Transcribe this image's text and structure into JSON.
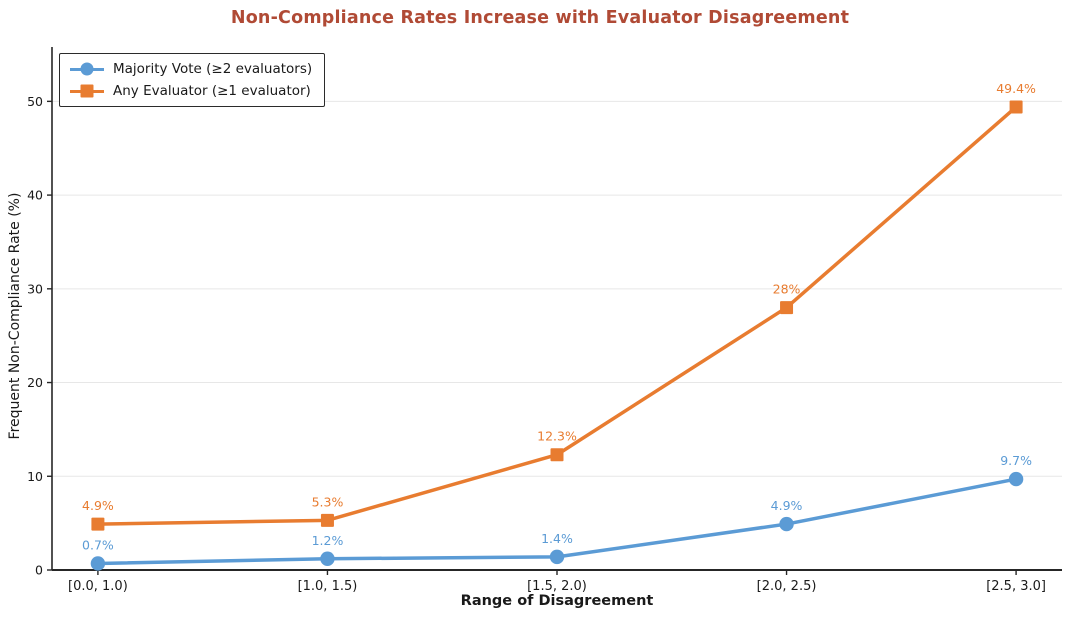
{
  "page": {
    "background": "#ffffff"
  },
  "chart_data": {
    "type": "line",
    "title": "Non-Compliance Rates Increase with Evaluator Disagreement",
    "title_color": "#B04A35",
    "xlabel": "Range of Disagreement",
    "ylabel": "Frequent Non-Compliance Rate (%)",
    "categories": [
      "[0.0, 1.0)",
      "[1.0, 1.5)",
      "[1.5, 2.0)",
      "[2.0, 2.5)",
      "[2.5, 3.0]"
    ],
    "yticks": [
      0,
      10,
      20,
      30,
      40,
      50
    ],
    "ylim": [
      0,
      55.8
    ],
    "grid": "horizontal-only",
    "gridline_color": "#e7e7e7",
    "axis_color": "#262626",
    "tick_label_color": "#1a1a1a",
    "legend_position": "upper-left",
    "series": [
      {
        "name": "Majority Vote (≥2 evaluators)",
        "marker": "circle",
        "color": "#5B9BD5",
        "values": [
          0.7,
          1.2,
          1.4,
          4.9,
          9.7
        ],
        "labels": [
          "0.7%",
          "1.2%",
          "1.4%",
          "4.9%",
          "9.7%"
        ]
      },
      {
        "name": "Any Evaluator (≥1 evaluator)",
        "marker": "square",
        "color": "#E87C30",
        "values": [
          4.9,
          5.3,
          12.3,
          28.0,
          49.4
        ],
        "labels": [
          "4.9%",
          "5.3%",
          "12.3%",
          "28%",
          "49.4%"
        ]
      }
    ]
  }
}
